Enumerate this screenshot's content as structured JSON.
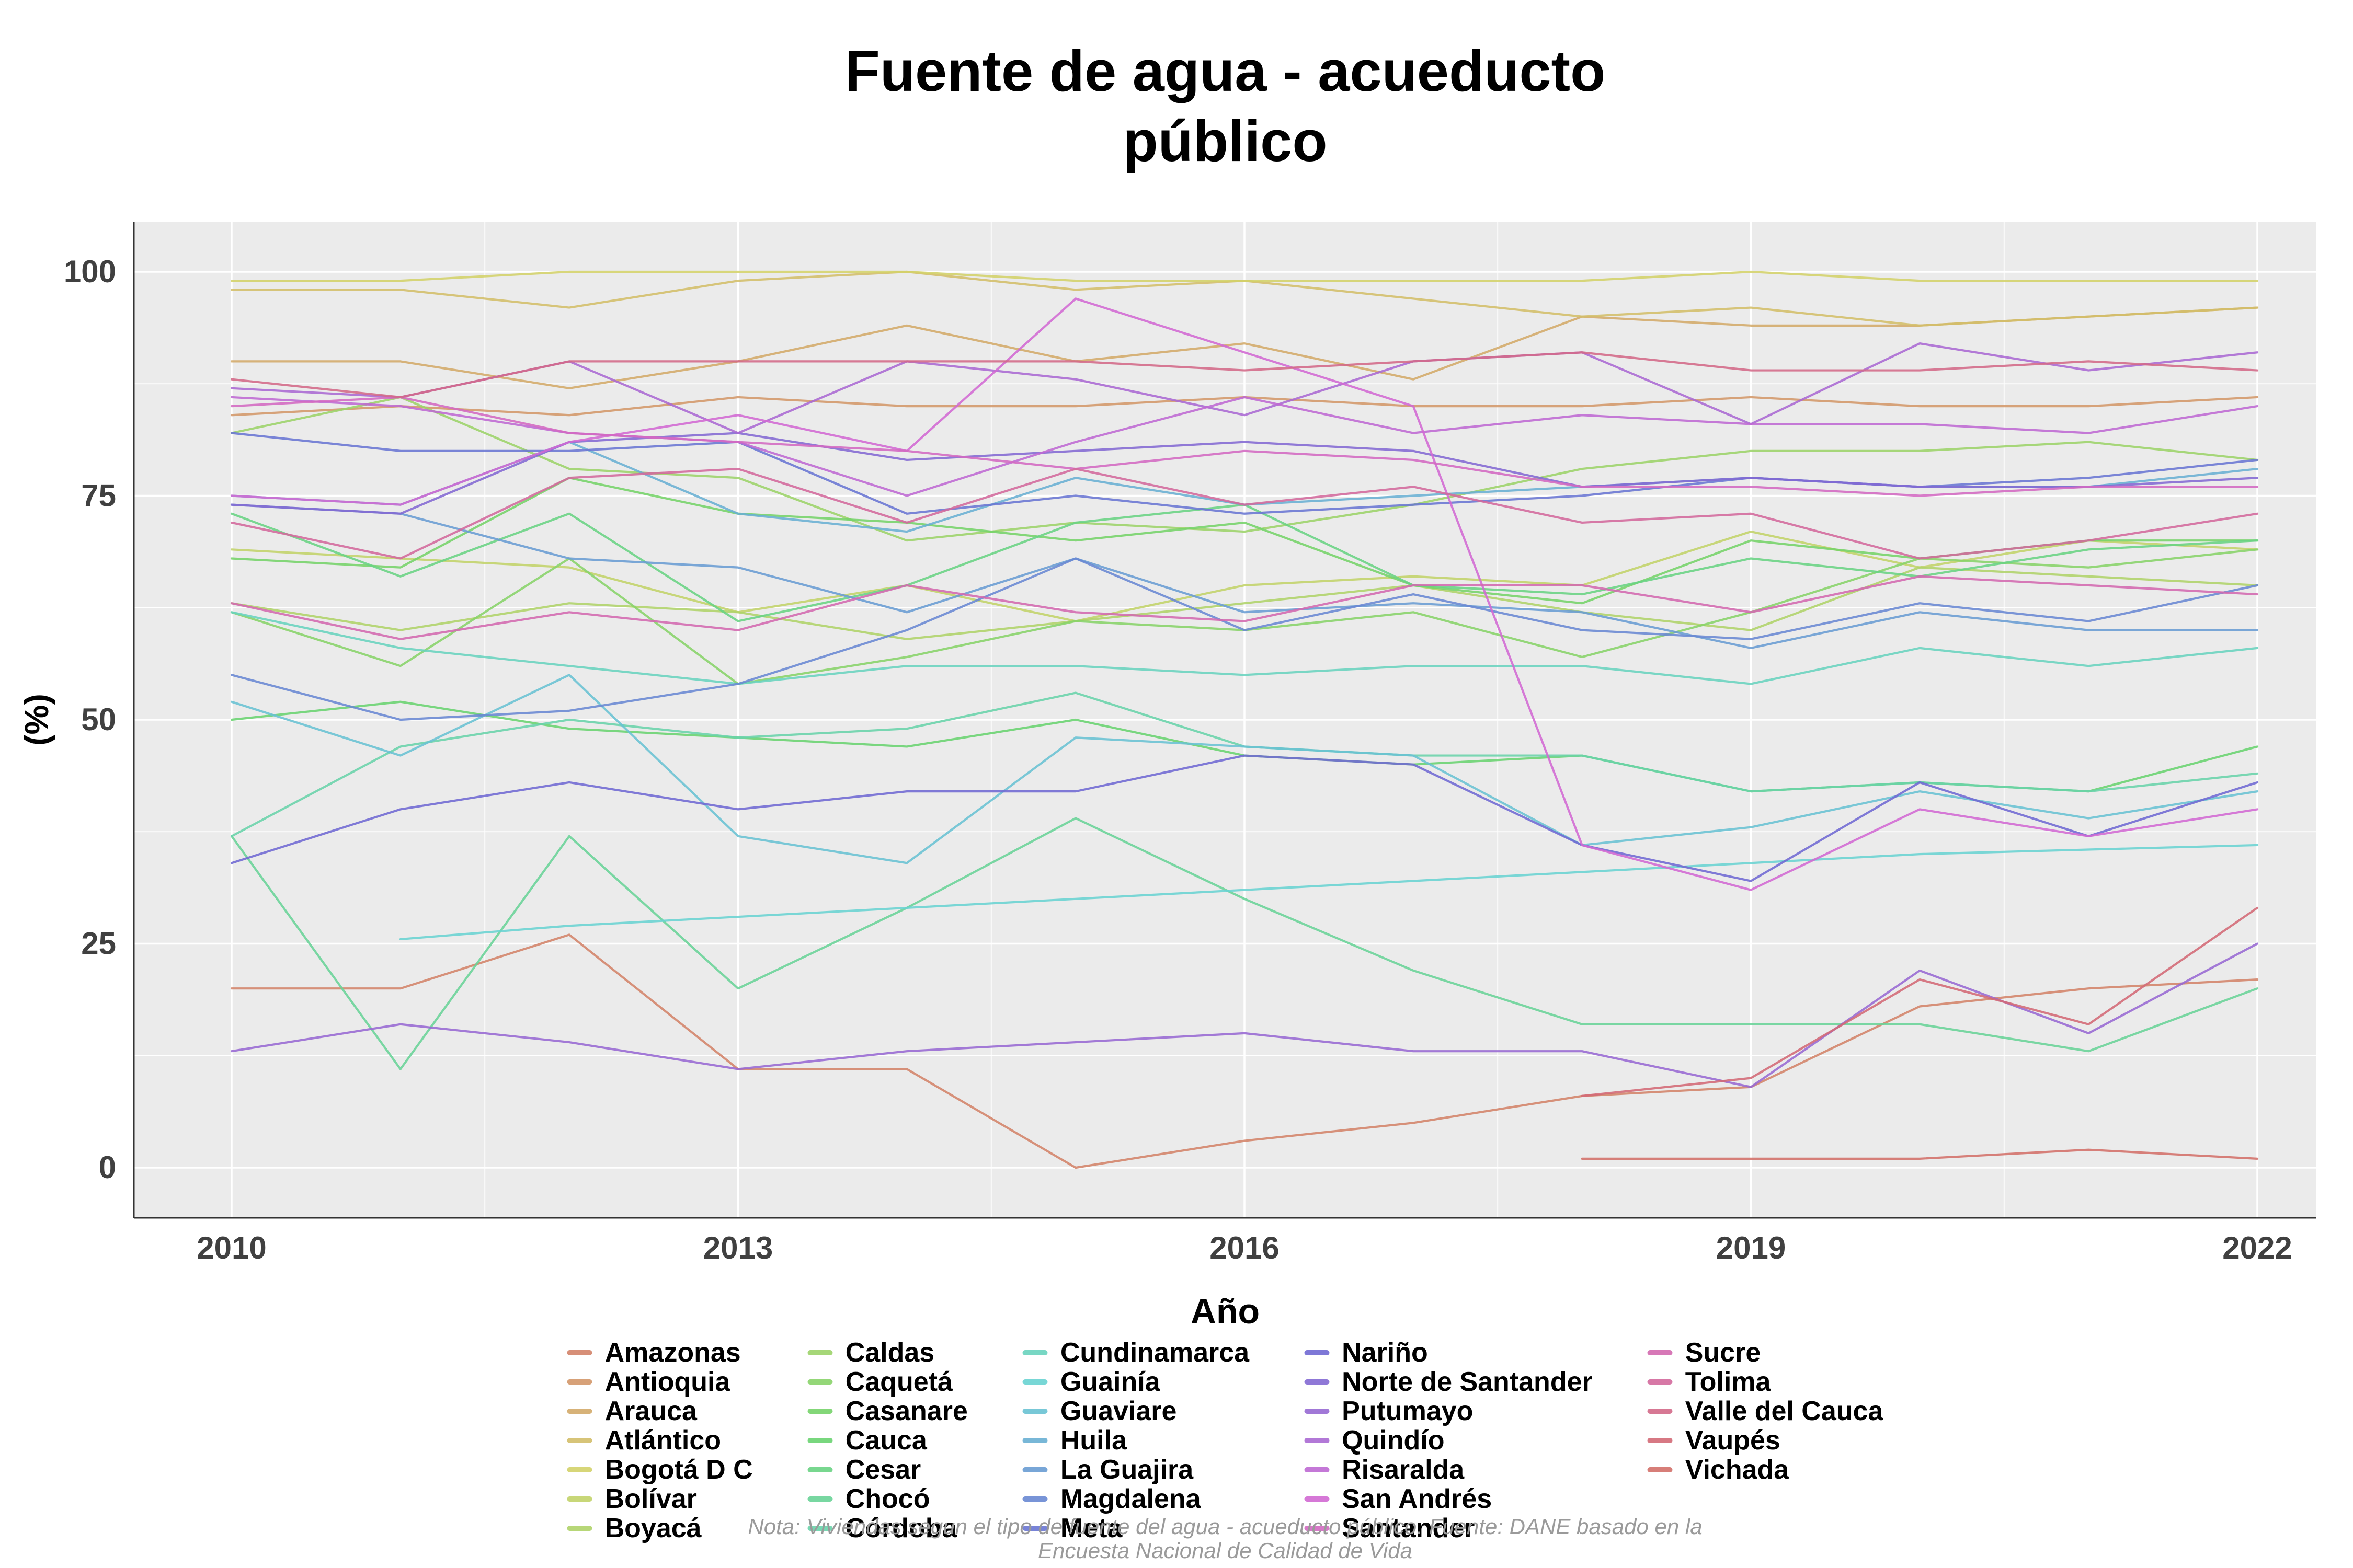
{
  "title": "Fuente de agua - acueducto\npúblico",
  "note": "Nota: Viviendas segun el tipo de fuente del agua - acueducto público. Fuente: DANE basado en la\nEncuesta Nacional de Calidad de Vida",
  "chart_data": {
    "type": "line",
    "title": "Fuente de agua - acueducto público",
    "xlabel": "Año",
    "ylabel": "(%)",
    "x": [
      2010,
      2011,
      2012,
      2013,
      2014,
      2015,
      2016,
      2017,
      2018,
      2019,
      2020,
      2021,
      2022
    ],
    "x_ticks": [
      2010,
      2013,
      2016,
      2019,
      2022
    ],
    "y_ticks": [
      0,
      25,
      50,
      75,
      100
    ],
    "ylim": [
      0,
      100
    ],
    "panel_bg": "#EBEBEB",
    "grid_color": "#FFFFFF",
    "axis_line_color": "#333333",
    "tick_label_color": "#404040",
    "legend_position": "bottom",
    "series": [
      {
        "name": "Amazonas",
        "color": "#D38369",
        "values": [
          20,
          20,
          26,
          11,
          11,
          0,
          3,
          5,
          8,
          9,
          18,
          20,
          21
        ]
      },
      {
        "name": "Antioquia",
        "color": "#D39769",
        "values": [
          84,
          85,
          84,
          86,
          85,
          85,
          86,
          85,
          85,
          86,
          85,
          85,
          86
        ]
      },
      {
        "name": "Arauca",
        "color": "#D3AA69",
        "values": [
          90,
          90,
          87,
          90,
          94,
          90,
          92,
          88,
          95,
          94,
          94,
          95,
          96
        ]
      },
      {
        "name": "Atlántico",
        "color": "#D3BE69",
        "values": [
          98,
          98,
          96,
          99,
          100,
          98,
          99,
          97,
          95,
          96,
          94,
          95,
          96
        ]
      },
      {
        "name": "Bogotá D C",
        "color": "#D3D169",
        "values": [
          99,
          99,
          100,
          100,
          100,
          99,
          99,
          99,
          99,
          100,
          99,
          99,
          99
        ]
      },
      {
        "name": "Bolívar",
        "color": "#C2D369",
        "values": [
          69,
          68,
          67,
          62,
          65,
          61,
          65,
          66,
          65,
          71,
          67,
          70,
          69
        ]
      },
      {
        "name": "Boyacá",
        "color": "#AFD369",
        "values": [
          63,
          60,
          63,
          62,
          59,
          61,
          63,
          65,
          62,
          60,
          67,
          66,
          65
        ]
      },
      {
        "name": "Caldas",
        "color": "#9CD369",
        "values": [
          82,
          86,
          78,
          77,
          70,
          72,
          71,
          74,
          78,
          80,
          80,
          81,
          79
        ]
      },
      {
        "name": "Caquetá",
        "color": "#88D369",
        "values": [
          62,
          56,
          68,
          54,
          57,
          61,
          60,
          62,
          57,
          62,
          68,
          67,
          69
        ]
      },
      {
        "name": "Casanare",
        "color": "#75D369",
        "values": [
          68,
          67,
          77,
          73,
          72,
          70,
          72,
          65,
          63,
          70,
          68,
          70,
          70
        ]
      },
      {
        "name": "Cauca",
        "color": "#69D370",
        "values": [
          50,
          52,
          49,
          48,
          47,
          50,
          46,
          45,
          46,
          42,
          43,
          42,
          47
        ]
      },
      {
        "name": "Cesar",
        "color": "#69D383",
        "values": [
          73,
          66,
          73,
          61,
          65,
          72,
          74,
          65,
          64,
          68,
          66,
          69,
          70
        ]
      },
      {
        "name": "Chocó",
        "color": "#69D397",
        "values": [
          37,
          11,
          37,
          20,
          29,
          39,
          30,
          22,
          16,
          16,
          16,
          13,
          20
        ]
      },
      {
        "name": "Córdoba",
        "color": "#69D3AA",
        "values": [
          37,
          47,
          50,
          48,
          49,
          53,
          47,
          46,
          46,
          42,
          43,
          42,
          44
        ]
      },
      {
        "name": "Cundinamarca",
        "color": "#69D3BE",
        "values": [
          62,
          58,
          56,
          54,
          56,
          56,
          55,
          56,
          56,
          54,
          58,
          56,
          58
        ]
      },
      {
        "name": "Guainía",
        "color": "#69D3D1",
        "values": [
          null,
          25.5,
          27,
          28,
          29,
          30,
          31,
          32,
          33,
          34,
          35,
          35.5,
          36
        ]
      },
      {
        "name": "Guaviare",
        "color": "#69C2D3",
        "values": [
          52,
          46,
          55,
          37,
          34,
          48,
          47,
          46,
          36,
          38,
          42,
          39,
          42
        ]
      },
      {
        "name": "Huila",
        "color": "#69AFD3",
        "values": [
          75,
          74,
          81,
          73,
          71,
          77,
          74,
          75,
          76,
          77,
          76,
          76,
          78
        ]
      },
      {
        "name": "La Guajira",
        "color": "#699CD3",
        "values": [
          74,
          73,
          68,
          67,
          62,
          68,
          62,
          63,
          62,
          58,
          62,
          60,
          60
        ]
      },
      {
        "name": "Magdalena",
        "color": "#6988D3",
        "values": [
          55,
          50,
          51,
          54,
          60,
          68,
          60,
          64,
          60,
          59,
          63,
          61,
          65
        ]
      },
      {
        "name": "Meta",
        "color": "#6975D3",
        "values": [
          82,
          80,
          80,
          81,
          73,
          75,
          73,
          74,
          75,
          77,
          76,
          77,
          79
        ]
      },
      {
        "name": "Nariño",
        "color": "#7069D3",
        "values": [
          34,
          40,
          43,
          40,
          42,
          42,
          46,
          45,
          36,
          32,
          43,
          37,
          43
        ]
      },
      {
        "name": "Norte de Santander",
        "color": "#8369D3",
        "values": [
          74,
          73,
          81,
          82,
          79,
          80,
          81,
          80,
          76,
          77,
          76,
          76,
          77
        ]
      },
      {
        "name": "Putumayo",
        "color": "#9769D3",
        "values": [
          13,
          16,
          14,
          11,
          13,
          14,
          15,
          13,
          13,
          9,
          22,
          15,
          25
        ]
      },
      {
        "name": "Quindío",
        "color": "#AA69D3",
        "values": [
          87,
          86,
          90,
          82,
          90,
          88,
          84,
          90,
          91,
          83,
          92,
          89,
          91
        ]
      },
      {
        "name": "Risaralda",
        "color": "#BE69D3",
        "values": [
          86,
          85,
          82,
          81,
          75,
          81,
          86,
          82,
          84,
          83,
          83,
          82,
          85
        ]
      },
      {
        "name": "San Andrés",
        "color": "#D169D3",
        "values": [
          75,
          74,
          81,
          84,
          80,
          97,
          91,
          85,
          36,
          31,
          40,
          37,
          40
        ]
      },
      {
        "name": "Santander",
        "color": "#D369C2",
        "values": [
          85,
          86,
          82,
          81,
          80,
          78,
          80,
          79,
          76,
          76,
          75,
          76,
          76
        ]
      },
      {
        "name": "Sucre",
        "color": "#D369AF",
        "values": [
          63,
          59,
          62,
          60,
          65,
          62,
          61,
          65,
          65,
          62,
          66,
          65,
          64
        ]
      },
      {
        "name": "Tolima",
        "color": "#D3699C",
        "values": [
          72,
          68,
          77,
          78,
          72,
          78,
          74,
          76,
          72,
          73,
          68,
          70,
          73
        ]
      },
      {
        "name": "Valle del Cauca",
        "color": "#D36988",
        "values": [
          88,
          86,
          90,
          90,
          90,
          90,
          89,
          90,
          91,
          89,
          89,
          90,
          89
        ]
      },
      {
        "name": "Vaupés",
        "color": "#D36975",
        "values": [
          null,
          null,
          null,
          null,
          null,
          null,
          null,
          null,
          8,
          10,
          21,
          16,
          29
        ]
      },
      {
        "name": "Vichada",
        "color": "#D37069",
        "values": [
          null,
          null,
          null,
          null,
          null,
          null,
          null,
          null,
          1,
          1,
          1,
          2,
          1
        ]
      }
    ]
  }
}
